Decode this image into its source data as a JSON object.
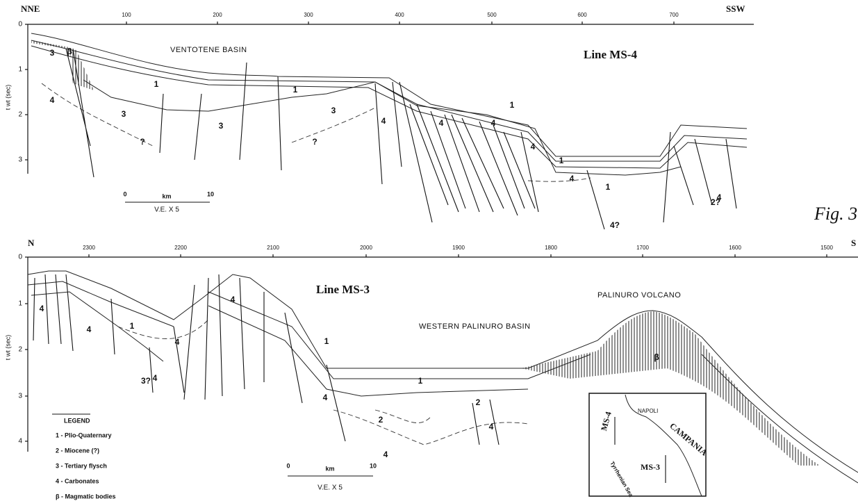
{
  "top": {
    "left_label": "NNE",
    "right_label": "SSW",
    "x_ticks": [
      "100",
      "200",
      "300",
      "400",
      "500",
      "600",
      "700"
    ],
    "y_ticks": [
      "0",
      "1",
      "2",
      "3"
    ],
    "y_label": "t wt (sec)",
    "title": "Line MS-4",
    "basin": "VENTOTENE BASIN",
    "units": [
      "3",
      "β",
      "1",
      "1",
      "4",
      "3",
      "3",
      "3",
      "?",
      "?",
      "4",
      "4",
      "4",
      "1",
      "4",
      "1",
      "1",
      "4",
      "4?",
      "2?",
      "4"
    ],
    "scale": {
      "zero": "0",
      "unit": "km",
      "ten": "10",
      "ve": "V.E. X 5"
    }
  },
  "figure_label": "Fig. 3",
  "bottom": {
    "left_label": "N",
    "right_label": "S",
    "x_ticks": [
      "2300",
      "2200",
      "2100",
      "2000",
      "1900",
      "1800",
      "1700",
      "1600",
      "1500"
    ],
    "y_ticks": [
      "0",
      "1",
      "2",
      "3",
      "4"
    ],
    "y_label": "t wt (sec)",
    "title": "Line MS-3",
    "volcano": "PALINURO VOLCANO",
    "basin": "WESTERN PALINURO BASIN",
    "units": [
      "4",
      "4",
      "1",
      "3?",
      "4",
      "4",
      "4",
      "1",
      "4",
      "1",
      "2",
      "2",
      "4",
      "4",
      "β"
    ],
    "scale": {
      "zero": "0",
      "unit": "km",
      "ten": "10",
      "ve": "V.E. X 5"
    },
    "legend": {
      "title": "LEGEND",
      "items": [
        "1 - Plio-Quaternary",
        "2 - Miocene (?)",
        "3 - Tertiary flysch",
        "4 - Carbonates",
        "β - Magmatic bodies"
      ]
    },
    "map": {
      "ms4": "MS-4",
      "napoli": "NAPOLI",
      "campania": "CAMPANIA",
      "ms3": "MS-3",
      "sea": "Tyrrhenian Sea"
    }
  }
}
